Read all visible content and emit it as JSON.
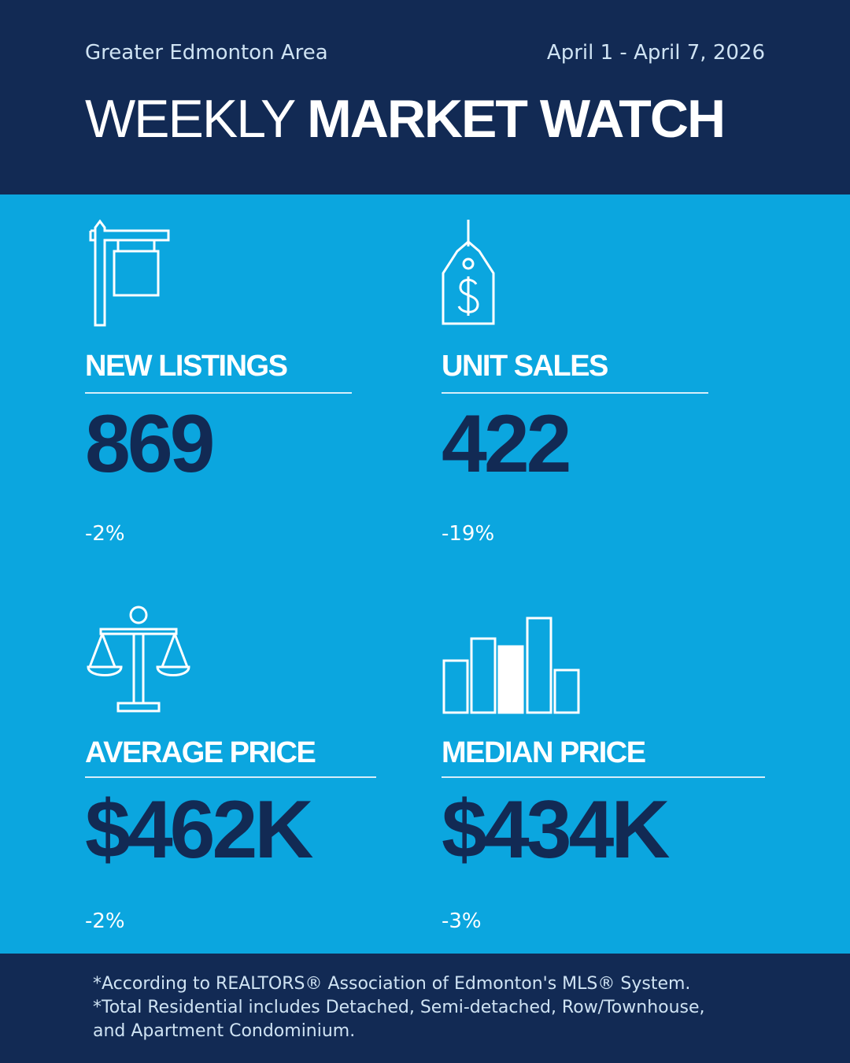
{
  "header": {
    "region": "Greater Edmonton Area",
    "dates": "April 1 - April 7, 2026",
    "title_light": "WEEKLY",
    "title_bold": "MARKET WATCH"
  },
  "metrics": [
    {
      "label": "NEW LISTINGS",
      "value": "869",
      "change": "-2%",
      "icon": "for-sale-sign-icon"
    },
    {
      "label": "UNIT SALES",
      "value": "422",
      "change": "-19%",
      "icon": "price-tag-icon"
    },
    {
      "label": "AVERAGE PRICE",
      "value": "$462K",
      "change": "-2%",
      "icon": "scales-icon"
    },
    {
      "label": "MEDIAN PRICE",
      "value": "$434K",
      "change": "-3%",
      "icon": "bar-chart-icon"
    }
  ],
  "footer": {
    "lines": [
      "*According to REALTORS® Association of Edmonton's MLS® System.",
      "*Total Residential includes Detached, Semi-detached, Row/Townhouse,",
      "and Apartment Condominium."
    ]
  },
  "colors": {
    "navy": "#122a54",
    "blue": "#0ba6df",
    "white": "#ffffff"
  }
}
